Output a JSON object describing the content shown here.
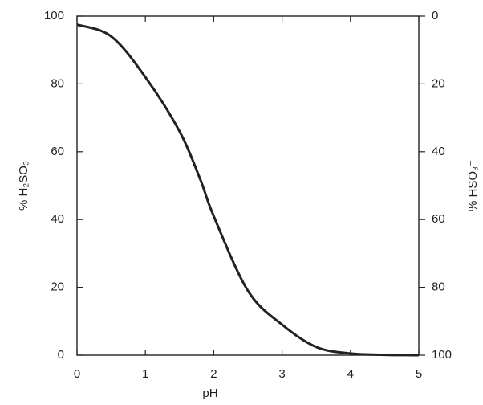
{
  "chart_data": {
    "type": "line",
    "x": [
      0,
      0.5,
      1,
      1.5,
      1.8,
      2,
      2.5,
      3,
      3.5,
      4,
      4.5,
      5
    ],
    "series": [
      {
        "name": "% H₂SO₃",
        "color": "#222222",
        "values": [
          97.5,
          94,
          82,
          66,
          52,
          41,
          19,
          9,
          2.4,
          0.5,
          0.1,
          0
        ]
      }
    ],
    "xlabel": "pH",
    "ylabel": "% H₂SO₃",
    "y2label": "% HSO₃⁻",
    "xlim": [
      0,
      5
    ],
    "xticks": [
      0,
      1,
      2,
      3,
      4,
      5
    ],
    "ylim": [
      0,
      100
    ],
    "yticks": [
      0,
      20,
      40,
      60,
      80,
      100
    ],
    "y2lim": [
      100,
      0
    ],
    "y2ticks": [
      0,
      20,
      40,
      60,
      80,
      100
    ]
  }
}
